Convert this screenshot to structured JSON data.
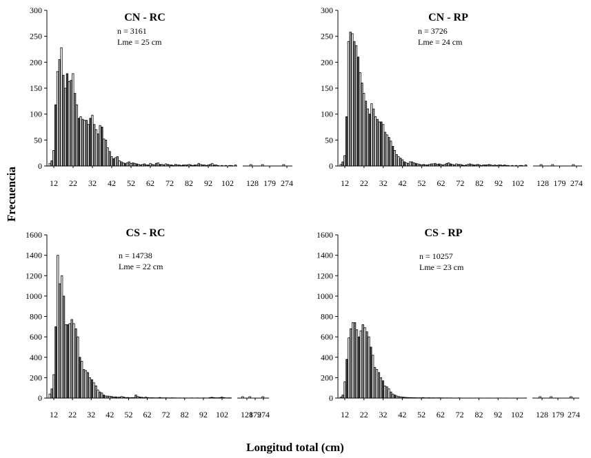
{
  "figure": {
    "ylabel": "Frecuencia",
    "xlabel": "Longitud total (cm)"
  },
  "chart_data": [
    {
      "type": "bar",
      "title": "CN - RC",
      "annotations": [
        "n = 3161",
        "Lme = 25 cm"
      ],
      "ylim": [
        0,
        300
      ],
      "yticks": [
        "0",
        "50",
        "100",
        "150",
        "200",
        "250",
        "300"
      ],
      "xticks": [
        "12",
        "22",
        "32",
        "42",
        "52",
        "62",
        "72",
        "82",
        "92",
        "102",
        "128",
        "179",
        "274"
      ],
      "values": [
        5,
        10,
        30,
        118,
        182,
        205,
        228,
        175,
        150,
        178,
        163,
        165,
        178,
        140,
        118,
        92,
        95,
        90,
        88,
        88,
        80,
        92,
        98,
        80,
        70,
        62,
        78,
        75,
        52,
        50,
        35,
        28,
        18,
        14,
        16,
        18,
        10,
        8,
        6,
        5,
        6,
        8,
        5,
        6,
        5,
        4,
        3,
        2,
        3,
        4,
        2,
        2,
        5,
        3,
        2,
        5,
        6,
        3,
        3,
        2,
        4,
        3,
        2,
        2,
        1,
        3,
        2,
        2,
        1,
        2,
        2,
        2,
        3,
        2,
        1,
        2,
        2,
        5,
        3,
        2,
        2,
        1,
        2,
        3,
        5,
        2,
        2,
        1,
        0,
        1,
        0,
        1,
        0,
        1,
        1,
        0,
        2
      ]
    },
    {
      "type": "bar",
      "title": "CN - RP",
      "annotations": [
        "n = 3726",
        "Lme = 24 cm"
      ],
      "ylim": [
        0,
        300
      ],
      "yticks": [
        "0",
        "50",
        "100",
        "150",
        "200",
        "250",
        "300"
      ],
      "xticks": [
        "12",
        "22",
        "32",
        "42",
        "52",
        "62",
        "72",
        "82",
        "92",
        "102",
        "128",
        "179",
        "274"
      ],
      "values": [
        3,
        8,
        20,
        95,
        240,
        258,
        255,
        240,
        232,
        210,
        180,
        160,
        140,
        125,
        110,
        100,
        120,
        110,
        95,
        90,
        85,
        85,
        80,
        65,
        60,
        55,
        48,
        38,
        30,
        22,
        18,
        15,
        12,
        8,
        6,
        5,
        8,
        8,
        6,
        5,
        4,
        3,
        2,
        3,
        2,
        2,
        3,
        4,
        4,
        5,
        3,
        4,
        3,
        2,
        3,
        5,
        6,
        4,
        3,
        2,
        4,
        3,
        3,
        2,
        1,
        2,
        3,
        4,
        3,
        2,
        2,
        3,
        2,
        1,
        2,
        2,
        2,
        3,
        2,
        1,
        2,
        1,
        2,
        2,
        1,
        2,
        1,
        1,
        0,
        1,
        0,
        1,
        0,
        1,
        1,
        0,
        2
      ]
    },
    {
      "type": "bar",
      "title": "CS - RC",
      "annotations": [
        "n = 14738",
        "Lme = 22 cm"
      ],
      "ylim": [
        0,
        1600
      ],
      "yticks": [
        "0",
        "200",
        "400",
        "600",
        "800",
        "1000",
        "1200",
        "1400",
        "1600"
      ],
      "xticks": [
        "12",
        "22",
        "32",
        "42",
        "52",
        "62",
        "72",
        "82",
        "92",
        "102",
        "128",
        "179",
        "274"
      ],
      "values": [
        40,
        90,
        230,
        700,
        1400,
        1120,
        1200,
        1000,
        720,
        720,
        730,
        770,
        730,
        680,
        600,
        400,
        360,
        280,
        270,
        250,
        200,
        180,
        150,
        120,
        80,
        60,
        50,
        30,
        20,
        20,
        18,
        15,
        10,
        12,
        8,
        10,
        15,
        10,
        5,
        6,
        4,
        5,
        5,
        30,
        15,
        10,
        8,
        5,
        10,
        5,
        3,
        4,
        3,
        2,
        3,
        6,
        3,
        2,
        3,
        2,
        2,
        3,
        2,
        2,
        1,
        2,
        1,
        2,
        1,
        1,
        1,
        2,
        1,
        1,
        2,
        1,
        1,
        2,
        1,
        1,
        5,
        8,
        5,
        3,
        3,
        5,
        10,
        5,
        2,
        2,
        3
      ]
    },
    {
      "type": "bar",
      "title": "CS - RP",
      "annotations": [
        "n = 10257",
        "Lme = 23 cm"
      ],
      "ylim": [
        0,
        1600
      ],
      "yticks": [
        "0",
        "200",
        "400",
        "600",
        "800",
        "1000",
        "1200",
        "1400",
        "1600"
      ],
      "xticks": [
        "12",
        "22",
        "32",
        "42",
        "52",
        "62",
        "72",
        "82",
        "92",
        "102",
        "128",
        "179",
        "274"
      ],
      "values": [
        10,
        30,
        160,
        380,
        590,
        680,
        740,
        740,
        670,
        600,
        660,
        720,
        690,
        650,
        600,
        500,
        420,
        300,
        280,
        250,
        200,
        170,
        120,
        110,
        90,
        60,
        40,
        30,
        20,
        15,
        12,
        10,
        8,
        6,
        5,
        5,
        4,
        4,
        3,
        3,
        3,
        5,
        3,
        2,
        4,
        2,
        3,
        2,
        2,
        3,
        2,
        2,
        1,
        2,
        1,
        2,
        1,
        1,
        1,
        2,
        1,
        1,
        1,
        0,
        1,
        1,
        0,
        1,
        0,
        1,
        1,
        0,
        0,
        1,
        0,
        1,
        0,
        0,
        1,
        0,
        1,
        0,
        1,
        1,
        0,
        0,
        1,
        0,
        0,
        1,
        0,
        0,
        1
      ]
    }
  ]
}
